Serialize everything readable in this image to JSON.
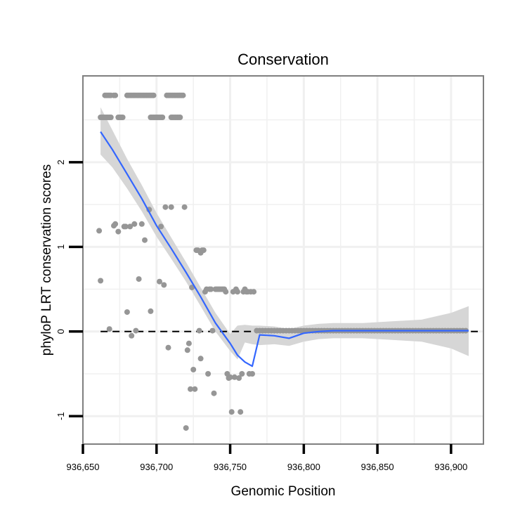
{
  "chart_data": {
    "type": "scatter",
    "title": "Conservation",
    "xlabel": "Genomic Position",
    "ylabel": "phyloP LRT conservation scores",
    "xlim": [
      936650,
      936922
    ],
    "ylim": [
      -1.33,
      3.02
    ],
    "x_ticks": [
      {
        "value": 936650,
        "label": "936,650"
      },
      {
        "value": 936700,
        "label": "936,700"
      },
      {
        "value": 936750,
        "label": "936,750"
      },
      {
        "value": 936800,
        "label": "936,800"
      },
      {
        "value": 936850,
        "label": "936,850"
      },
      {
        "value": 936900,
        "label": "936,900"
      }
    ],
    "y_ticks": [
      {
        "value": -1,
        "label": "-1"
      },
      {
        "value": 0,
        "label": "0"
      },
      {
        "value": 1,
        "label": "1"
      },
      {
        "value": 2,
        "label": "2"
      }
    ],
    "reference_line": {
      "y": 0,
      "style": "dashed",
      "color": "#000000"
    },
    "colors": {
      "points": "#969696",
      "smooth": "#3366FF",
      "ribbon": "#D6D6D6",
      "grid": "#F0F0F0",
      "border": "#7F7F7F"
    },
    "points": [
      [
        936662,
        2.53
      ],
      [
        936663,
        2.53
      ],
      [
        936664,
        2.53
      ],
      [
        936665,
        2.53
      ],
      [
        936666,
        2.53
      ],
      [
        936667,
        2.53
      ],
      [
        936668,
        2.53
      ],
      [
        936669,
        2.53
      ],
      [
        936674,
        2.53
      ],
      [
        936675,
        2.53
      ],
      [
        936676,
        2.53
      ],
      [
        936677,
        2.53
      ],
      [
        936696,
        2.53
      ],
      [
        936697,
        2.53
      ],
      [
        936698,
        2.53
      ],
      [
        936699,
        2.53
      ],
      [
        936700,
        2.53
      ],
      [
        936701,
        2.53
      ],
      [
        936702,
        2.53
      ],
      [
        936703,
        2.53
      ],
      [
        936704,
        2.53
      ],
      [
        936710,
        2.53
      ],
      [
        936711,
        2.53
      ],
      [
        936712,
        2.53
      ],
      [
        936713,
        2.53
      ],
      [
        936714,
        2.53
      ],
      [
        936715,
        2.53
      ],
      [
        936716,
        2.53
      ],
      [
        936665,
        2.79
      ],
      [
        936666,
        2.79
      ],
      [
        936667,
        2.79
      ],
      [
        936668,
        2.79
      ],
      [
        936669,
        2.79
      ],
      [
        936671,
        2.79
      ],
      [
        936672,
        2.79
      ],
      [
        936680,
        2.79
      ],
      [
        936681,
        2.79
      ],
      [
        936682,
        2.79
      ],
      [
        936683,
        2.79
      ],
      [
        936684,
        2.79
      ],
      [
        936685,
        2.79
      ],
      [
        936686,
        2.79
      ],
      [
        936687,
        2.79
      ],
      [
        936688,
        2.79
      ],
      [
        936689,
        2.79
      ],
      [
        936690,
        2.79
      ],
      [
        936691,
        2.79
      ],
      [
        936692,
        2.79
      ],
      [
        936693,
        2.79
      ],
      [
        936694,
        2.79
      ],
      [
        936695,
        2.79
      ],
      [
        936696,
        2.79
      ],
      [
        936697,
        2.79
      ],
      [
        936698,
        2.79
      ],
      [
        936707,
        2.79
      ],
      [
        936708,
        2.79
      ],
      [
        936709,
        2.79
      ],
      [
        936710,
        2.79
      ],
      [
        936711,
        2.79
      ],
      [
        936712,
        2.79
      ],
      [
        936713,
        2.79
      ],
      [
        936714,
        2.79
      ],
      [
        936715,
        2.79
      ],
      [
        936716,
        2.79
      ],
      [
        936717,
        2.79
      ],
      [
        936718,
        2.79
      ],
      [
        936661,
        1.19
      ],
      [
        936662,
        0.6
      ],
      [
        936668,
        0.03
      ],
      [
        936671,
        1.25
      ],
      [
        936672,
        1.27
      ],
      [
        936674,
        1.18
      ],
      [
        936678,
        1.24
      ],
      [
        936679,
        1.24
      ],
      [
        936680,
        0.23
      ],
      [
        936682,
        1.24
      ],
      [
        936683,
        -0.05
      ],
      [
        936685,
        1.27
      ],
      [
        936686,
        0.01
      ],
      [
        936688,
        0.62
      ],
      [
        936690,
        1.27
      ],
      [
        936692,
        1.08
      ],
      [
        936695,
        1.44
      ],
      [
        936696,
        0.24
      ],
      [
        936702,
        0.59
      ],
      [
        936703,
        1.24
      ],
      [
        936705,
        0.55
      ],
      [
        936706,
        1.47
      ],
      [
        936708,
        -0.19
      ],
      [
        936710,
        1.47
      ],
      [
        936719,
        1.47
      ],
      [
        936720,
        -1.14
      ],
      [
        936721,
        -0.22
      ],
      [
        936722,
        -0.14
      ],
      [
        936723,
        -0.68
      ],
      [
        936724,
        0.52
      ],
      [
        936725,
        -0.45
      ],
      [
        936726,
        -0.68
      ],
      [
        936727,
        0.96
      ],
      [
        936728,
        0.96
      ],
      [
        936729,
        0.01
      ],
      [
        936730,
        0.93
      ],
      [
        936730,
        -0.32
      ],
      [
        936731,
        0.96
      ],
      [
        936732,
        0.96
      ],
      [
        936733,
        0.47
      ],
      [
        936734,
        0.5
      ],
      [
        936735,
        -0.5
      ],
      [
        936736,
        0.5
      ],
      [
        936737,
        0.5
      ],
      [
        936738,
        0.01
      ],
      [
        936739,
        -0.73
      ],
      [
        936740,
        0.5
      ],
      [
        936741,
        0.5
      ],
      [
        936742,
        0.5
      ],
      [
        936743,
        0.5
      ],
      [
        936744,
        0.5
      ],
      [
        936745,
        0.5
      ],
      [
        936746,
        0.5
      ],
      [
        936747,
        0.47
      ],
      [
        936748,
        -0.5
      ],
      [
        936749,
        -0.55
      ],
      [
        936750,
        -0.54
      ],
      [
        936751,
        -0.95
      ],
      [
        936752,
        0.47
      ],
      [
        936753,
        -0.54
      ],
      [
        936754,
        0.5
      ],
      [
        936755,
        0.47
      ],
      [
        936756,
        -0.55
      ],
      [
        936757,
        -0.95
      ],
      [
        936758,
        -0.5
      ],
      [
        936759,
        0.47
      ],
      [
        936760,
        0.5
      ],
      [
        936761,
        0.47
      ],
      [
        936762,
        0.47
      ],
      [
        936763,
        -0.5
      ],
      [
        936764,
        0.47
      ],
      [
        936765,
        -0.5
      ],
      [
        936766,
        0.47
      ],
      [
        936768,
        0.01
      ],
      [
        936770,
        0.01
      ],
      [
        936772,
        0.01
      ],
      [
        936774,
        0.01
      ],
      [
        936776,
        0.01
      ],
      [
        936778,
        0.01
      ],
      [
        936780,
        0.01
      ],
      [
        936782,
        0.01
      ],
      [
        936784,
        0.01
      ],
      [
        936786,
        0.01
      ],
      [
        936788,
        0.01
      ],
      [
        936790,
        0.01
      ],
      [
        936792,
        0.01
      ],
      [
        936794,
        0.01
      ],
      [
        936796,
        0.01
      ],
      [
        936798,
        0.01
      ],
      [
        936800,
        0.01
      ],
      [
        936802,
        0.01
      ],
      [
        936804,
        0.01
      ],
      [
        936806,
        0.01
      ],
      [
        936808,
        0.01
      ],
      [
        936810,
        0.01
      ],
      [
        936812,
        0.01
      ],
      [
        936814,
        0.01
      ],
      [
        936816,
        0.01
      ],
      [
        936818,
        0.01
      ],
      [
        936820,
        0.01
      ],
      [
        936822,
        0.01
      ],
      [
        936824,
        0.01
      ],
      [
        936826,
        0.01
      ],
      [
        936828,
        0.01
      ],
      [
        936830,
        0.01
      ],
      [
        936832,
        0.01
      ],
      [
        936834,
        0.01
      ],
      [
        936836,
        0.01
      ],
      [
        936838,
        0.01
      ],
      [
        936840,
        0.01
      ],
      [
        936842,
        0.01
      ],
      [
        936844,
        0.01
      ],
      [
        936846,
        0.01
      ],
      [
        936848,
        0.01
      ],
      [
        936850,
        0.01
      ],
      [
        936852,
        0.01
      ],
      [
        936854,
        0.01
      ],
      [
        936856,
        0.01
      ],
      [
        936858,
        0.01
      ],
      [
        936860,
        0.01
      ],
      [
        936862,
        0.01
      ],
      [
        936864,
        0.01
      ],
      [
        936866,
        0.01
      ],
      [
        936868,
        0.01
      ],
      [
        936870,
        0.01
      ],
      [
        936872,
        0.01
      ],
      [
        936874,
        0.01
      ],
      [
        936876,
        0.01
      ],
      [
        936878,
        0.01
      ],
      [
        936880,
        0.01
      ],
      [
        936882,
        0.01
      ],
      [
        936884,
        0.01
      ],
      [
        936886,
        0.01
      ],
      [
        936888,
        0.01
      ],
      [
        936890,
        0.01
      ],
      [
        936892,
        0.01
      ],
      [
        936894,
        0.01
      ],
      [
        936896,
        0.01
      ],
      [
        936898,
        0.01
      ],
      [
        936900,
        0.01
      ],
      [
        936902,
        0.01
      ],
      [
        936904,
        0.01
      ],
      [
        936906,
        0.01
      ],
      [
        936908,
        0.01
      ],
      [
        936910,
        0.01
      ]
    ],
    "smooth": {
      "x": [
        936662,
        936670,
        936680,
        936690,
        936700,
        936710,
        936720,
        936730,
        936740,
        936750,
        936755,
        936760,
        936765,
        936770,
        936780,
        936790,
        936800,
        936810,
        936820,
        936840,
        936860,
        936880,
        936900,
        936912
      ],
      "y": [
        2.36,
        2.15,
        1.86,
        1.57,
        1.25,
        0.98,
        0.7,
        0.41,
        0.1,
        -0.14,
        -0.28,
        -0.36,
        -0.41,
        -0.04,
        -0.05,
        -0.08,
        -0.02,
        0.0,
        0.01,
        0.01,
        0.01,
        0.01,
        0.01,
        0.01
      ],
      "lower": [
        2.09,
        1.94,
        1.69,
        1.42,
        1.12,
        0.86,
        0.59,
        0.3,
        0.0,
        -0.23,
        -0.33,
        -0.13,
        -0.15,
        -0.16,
        -0.15,
        -0.17,
        -0.12,
        -0.09,
        -0.08,
        -0.08,
        -0.1,
        -0.12,
        -0.2,
        -0.29
      ],
      "upper": [
        2.65,
        2.38,
        2.04,
        1.73,
        1.4,
        1.11,
        0.82,
        0.52,
        0.22,
        -0.03,
        0.07,
        0.08,
        0.07,
        0.07,
        0.06,
        0.03,
        0.07,
        0.09,
        0.1,
        0.1,
        0.12,
        0.14,
        0.22,
        0.3
      ]
    }
  }
}
